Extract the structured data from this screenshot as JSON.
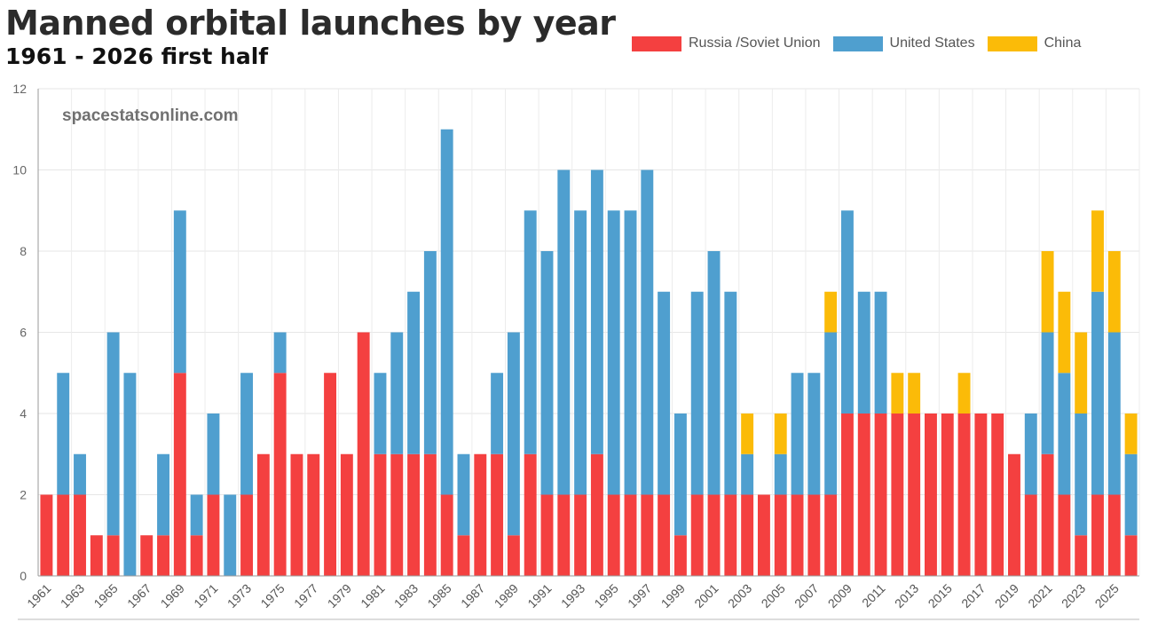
{
  "chart_data": {
    "type": "bar",
    "stacked": true,
    "title": "Manned orbital launches by year",
    "subtitle": "1961 - 2026 first half",
    "watermark": "spacestatsonline.com",
    "ylim": [
      0,
      12
    ],
    "yticks": [
      0,
      2,
      4,
      6,
      8,
      10,
      12
    ],
    "grid": true,
    "legend_position": "top-right",
    "categories": [
      "1961",
      "1962",
      "1963",
      "1964",
      "1965",
      "1966",
      "1967",
      "1968",
      "1969",
      "1970",
      "1971",
      "1972",
      "1973",
      "1974",
      "1975",
      "1976",
      "1977",
      "1978",
      "1979",
      "1980",
      "1981",
      "1982",
      "1983",
      "1984",
      "1985",
      "1986",
      "1987",
      "1988",
      "1989",
      "1990",
      "1991",
      "1992",
      "1993",
      "1994",
      "1995",
      "1996",
      "1997",
      "1998",
      "1999",
      "2000",
      "2001",
      "2002",
      "2003",
      "2004",
      "2005",
      "2006",
      "2007",
      "2008",
      "2009",
      "2010",
      "2011",
      "2012",
      "2013",
      "2014",
      "2015",
      "2016",
      "2017",
      "2018",
      "2019",
      "2020",
      "2021",
      "2022",
      "2023",
      "2024",
      "2025",
      "2026"
    ],
    "series": [
      {
        "name": "Russia /Soviet Union",
        "color": "#f44040",
        "values": [
          2,
          2,
          2,
          1,
          1,
          0,
          1,
          1,
          5,
          1,
          2,
          0,
          2,
          3,
          5,
          3,
          3,
          5,
          3,
          6,
          3,
          3,
          3,
          3,
          2,
          1,
          3,
          3,
          1,
          3,
          2,
          2,
          2,
          3,
          2,
          2,
          2,
          2,
          1,
          2,
          2,
          2,
          2,
          2,
          2,
          2,
          2,
          2,
          4,
          4,
          4,
          4,
          4,
          4,
          4,
          4,
          4,
          4,
          3,
          2,
          3,
          2,
          1,
          2,
          2,
          1
        ]
      },
      {
        "name": "United States",
        "color": "#4f9fcf",
        "values": [
          0,
          3,
          1,
          0,
          5,
          5,
          0,
          2,
          4,
          1,
          2,
          2,
          3,
          0,
          1,
          0,
          0,
          0,
          0,
          0,
          2,
          3,
          4,
          5,
          9,
          2,
          0,
          2,
          5,
          6,
          6,
          8,
          7,
          7,
          7,
          7,
          8,
          5,
          3,
          5,
          6,
          5,
          1,
          0,
          1,
          3,
          3,
          4,
          5,
          3,
          3,
          0,
          0,
          0,
          0,
          0,
          0,
          0,
          0,
          2,
          3,
          3,
          3,
          5,
          4,
          2
        ]
      },
      {
        "name": "China",
        "color": "#fbbb08",
        "values": [
          0,
          0,
          0,
          0,
          0,
          0,
          0,
          0,
          0,
          0,
          0,
          0,
          0,
          0,
          0,
          0,
          0,
          0,
          0,
          0,
          0,
          0,
          0,
          0,
          0,
          0,
          0,
          0,
          0,
          0,
          0,
          0,
          0,
          0,
          0,
          0,
          0,
          0,
          0,
          0,
          0,
          0,
          1,
          0,
          1,
          0,
          0,
          1,
          0,
          0,
          0,
          1,
          1,
          0,
          0,
          1,
          0,
          0,
          0,
          0,
          2,
          2,
          2,
          2,
          2,
          1
        ]
      }
    ]
  }
}
